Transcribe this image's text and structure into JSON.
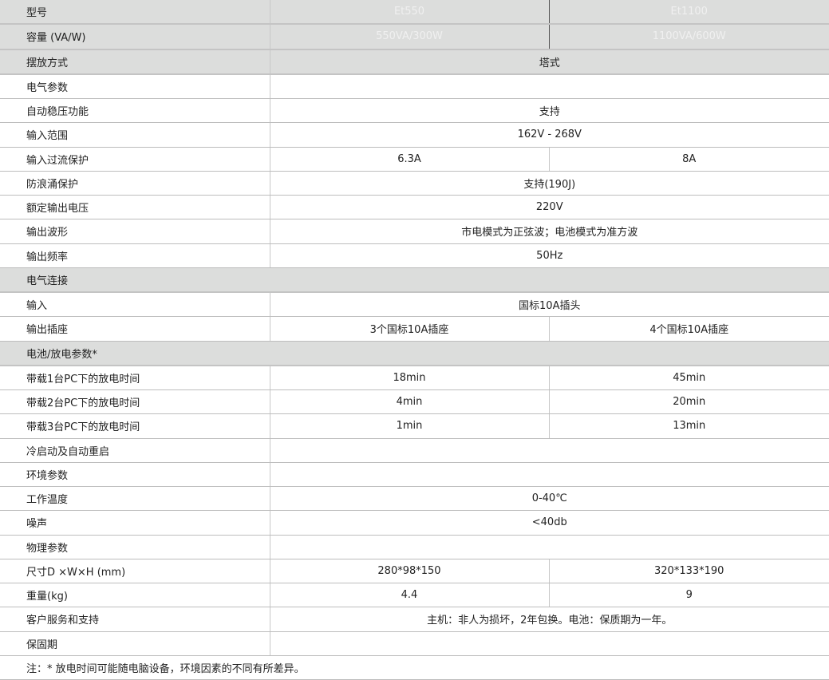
{
  "header": {
    "model_label": "型号",
    "models": [
      "Et550",
      "Et1100"
    ],
    "capacity_label": "容量 (VA/W)",
    "capacities": [
      "550VA/300W",
      "1100VA/600W"
    ]
  },
  "rows": [
    {
      "label": "摆放方式",
      "value": "塔式",
      "style": "gray-span"
    },
    {
      "label": "电气参数",
      "value": ""
    },
    {
      "label": "自动稳压功能",
      "value": "支持"
    },
    {
      "label": "输入范围",
      "value": "162V - 268V"
    },
    {
      "label": "输入过流保护",
      "values": [
        "6.3A",
        "8A"
      ]
    },
    {
      "label": "防浪涌保护",
      "value": "支持(190J)"
    },
    {
      "label": "额定输出电压",
      "value": "220V"
    },
    {
      "label": "输出波形",
      "value": "市电模式为正弦波；电池模式为准方波"
    },
    {
      "label": "输出频率",
      "value": "50Hz"
    },
    {
      "label": "电气连接",
      "section": true
    },
    {
      "label": "输入",
      "value": "国标10A插头"
    },
    {
      "label": "输出插座",
      "values": [
        "3个国标10A插座",
        "4个国标10A插座"
      ]
    },
    {
      "label": "电池/放电参数*",
      "section": true
    },
    {
      "label": "带载1台PC下的放电时间",
      "values": [
        "18min",
        "45min"
      ]
    },
    {
      "label": "带载2台PC下的放电时间",
      "values": [
        "4min",
        "20min"
      ]
    },
    {
      "label": "带载3台PC下的放电时间",
      "values": [
        "1min",
        "13min"
      ]
    },
    {
      "label": "冷启动及自动重启",
      "value": ""
    },
    {
      "label": "环境参数",
      "value": ""
    },
    {
      "label": "工作温度",
      "value": "0-40℃"
    },
    {
      "label": "噪声",
      "value": "<40db"
    },
    {
      "label": "物理参数",
      "value": ""
    },
    {
      "label": "尺寸D ×W×H (mm)",
      "values": [
        "280*98*150",
        "320*133*190"
      ]
    },
    {
      "label": "重量(kg)",
      "values": [
        "4.4",
        "9"
      ]
    },
    {
      "label": "客户服务和支持",
      "value": "主机：非人为损坏，2年包换。电池：保质期为一年。"
    },
    {
      "label": "保固期",
      "value": ""
    }
  ],
  "footnote": "注：* 放电时间可能随电脑设备，环境因素的不同有所差异。",
  "colors": {
    "header_dark": "#3b3b3b",
    "section_gray": "#dcdddc"
  }
}
